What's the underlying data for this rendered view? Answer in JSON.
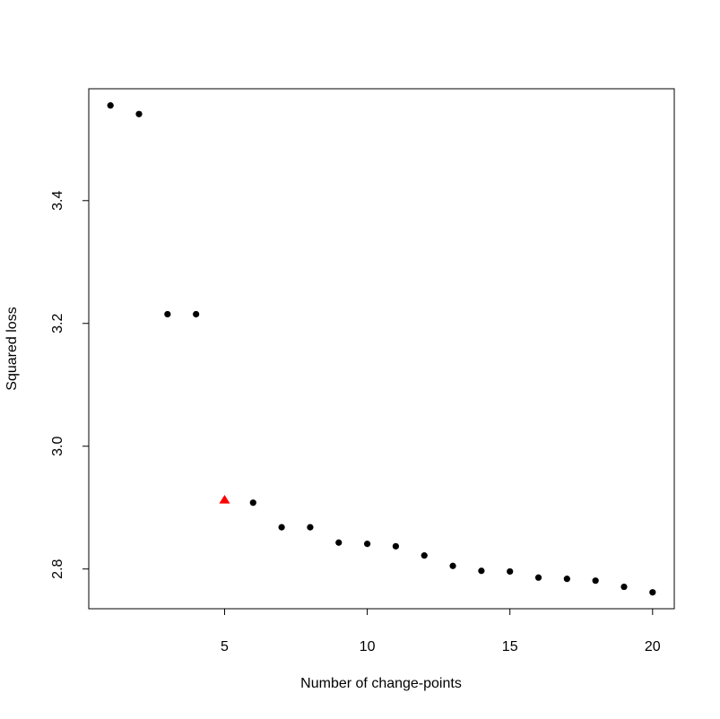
{
  "chart_data": {
    "type": "scatter",
    "title": "",
    "xlabel": "Number of change-points",
    "ylabel": "Squared loss",
    "xlim": [
      0.24,
      20.76
    ],
    "ylim": [
      2.7353,
      3.5822
    ],
    "xticks": [
      5,
      10,
      15,
      20
    ],
    "yticks": [
      2.8,
      3.0,
      3.2,
      3.4
    ],
    "xtick_labels": [
      "5",
      "10",
      "15",
      "20"
    ],
    "ytick_labels": [
      "2.8",
      "3.0",
      "3.2",
      "3.4"
    ],
    "grid": false,
    "legend": "none",
    "series": [
      {
        "marker": "circle",
        "color": "#000000",
        "x": [
          1,
          2,
          3,
          4,
          6,
          7,
          8,
          9,
          10,
          11,
          12,
          13,
          14,
          15,
          16,
          17,
          18,
          19,
          20
        ],
        "y": [
          3.555,
          3.541,
          3.215,
          3.215,
          2.908,
          2.868,
          2.868,
          2.843,
          2.841,
          2.837,
          2.822,
          2.805,
          2.797,
          2.796,
          2.786,
          2.784,
          2.781,
          2.771,
          2.762
        ]
      },
      {
        "marker": "triangle",
        "color": "#ff0000",
        "x": [
          5
        ],
        "y": [
          2.912
        ]
      }
    ]
  }
}
